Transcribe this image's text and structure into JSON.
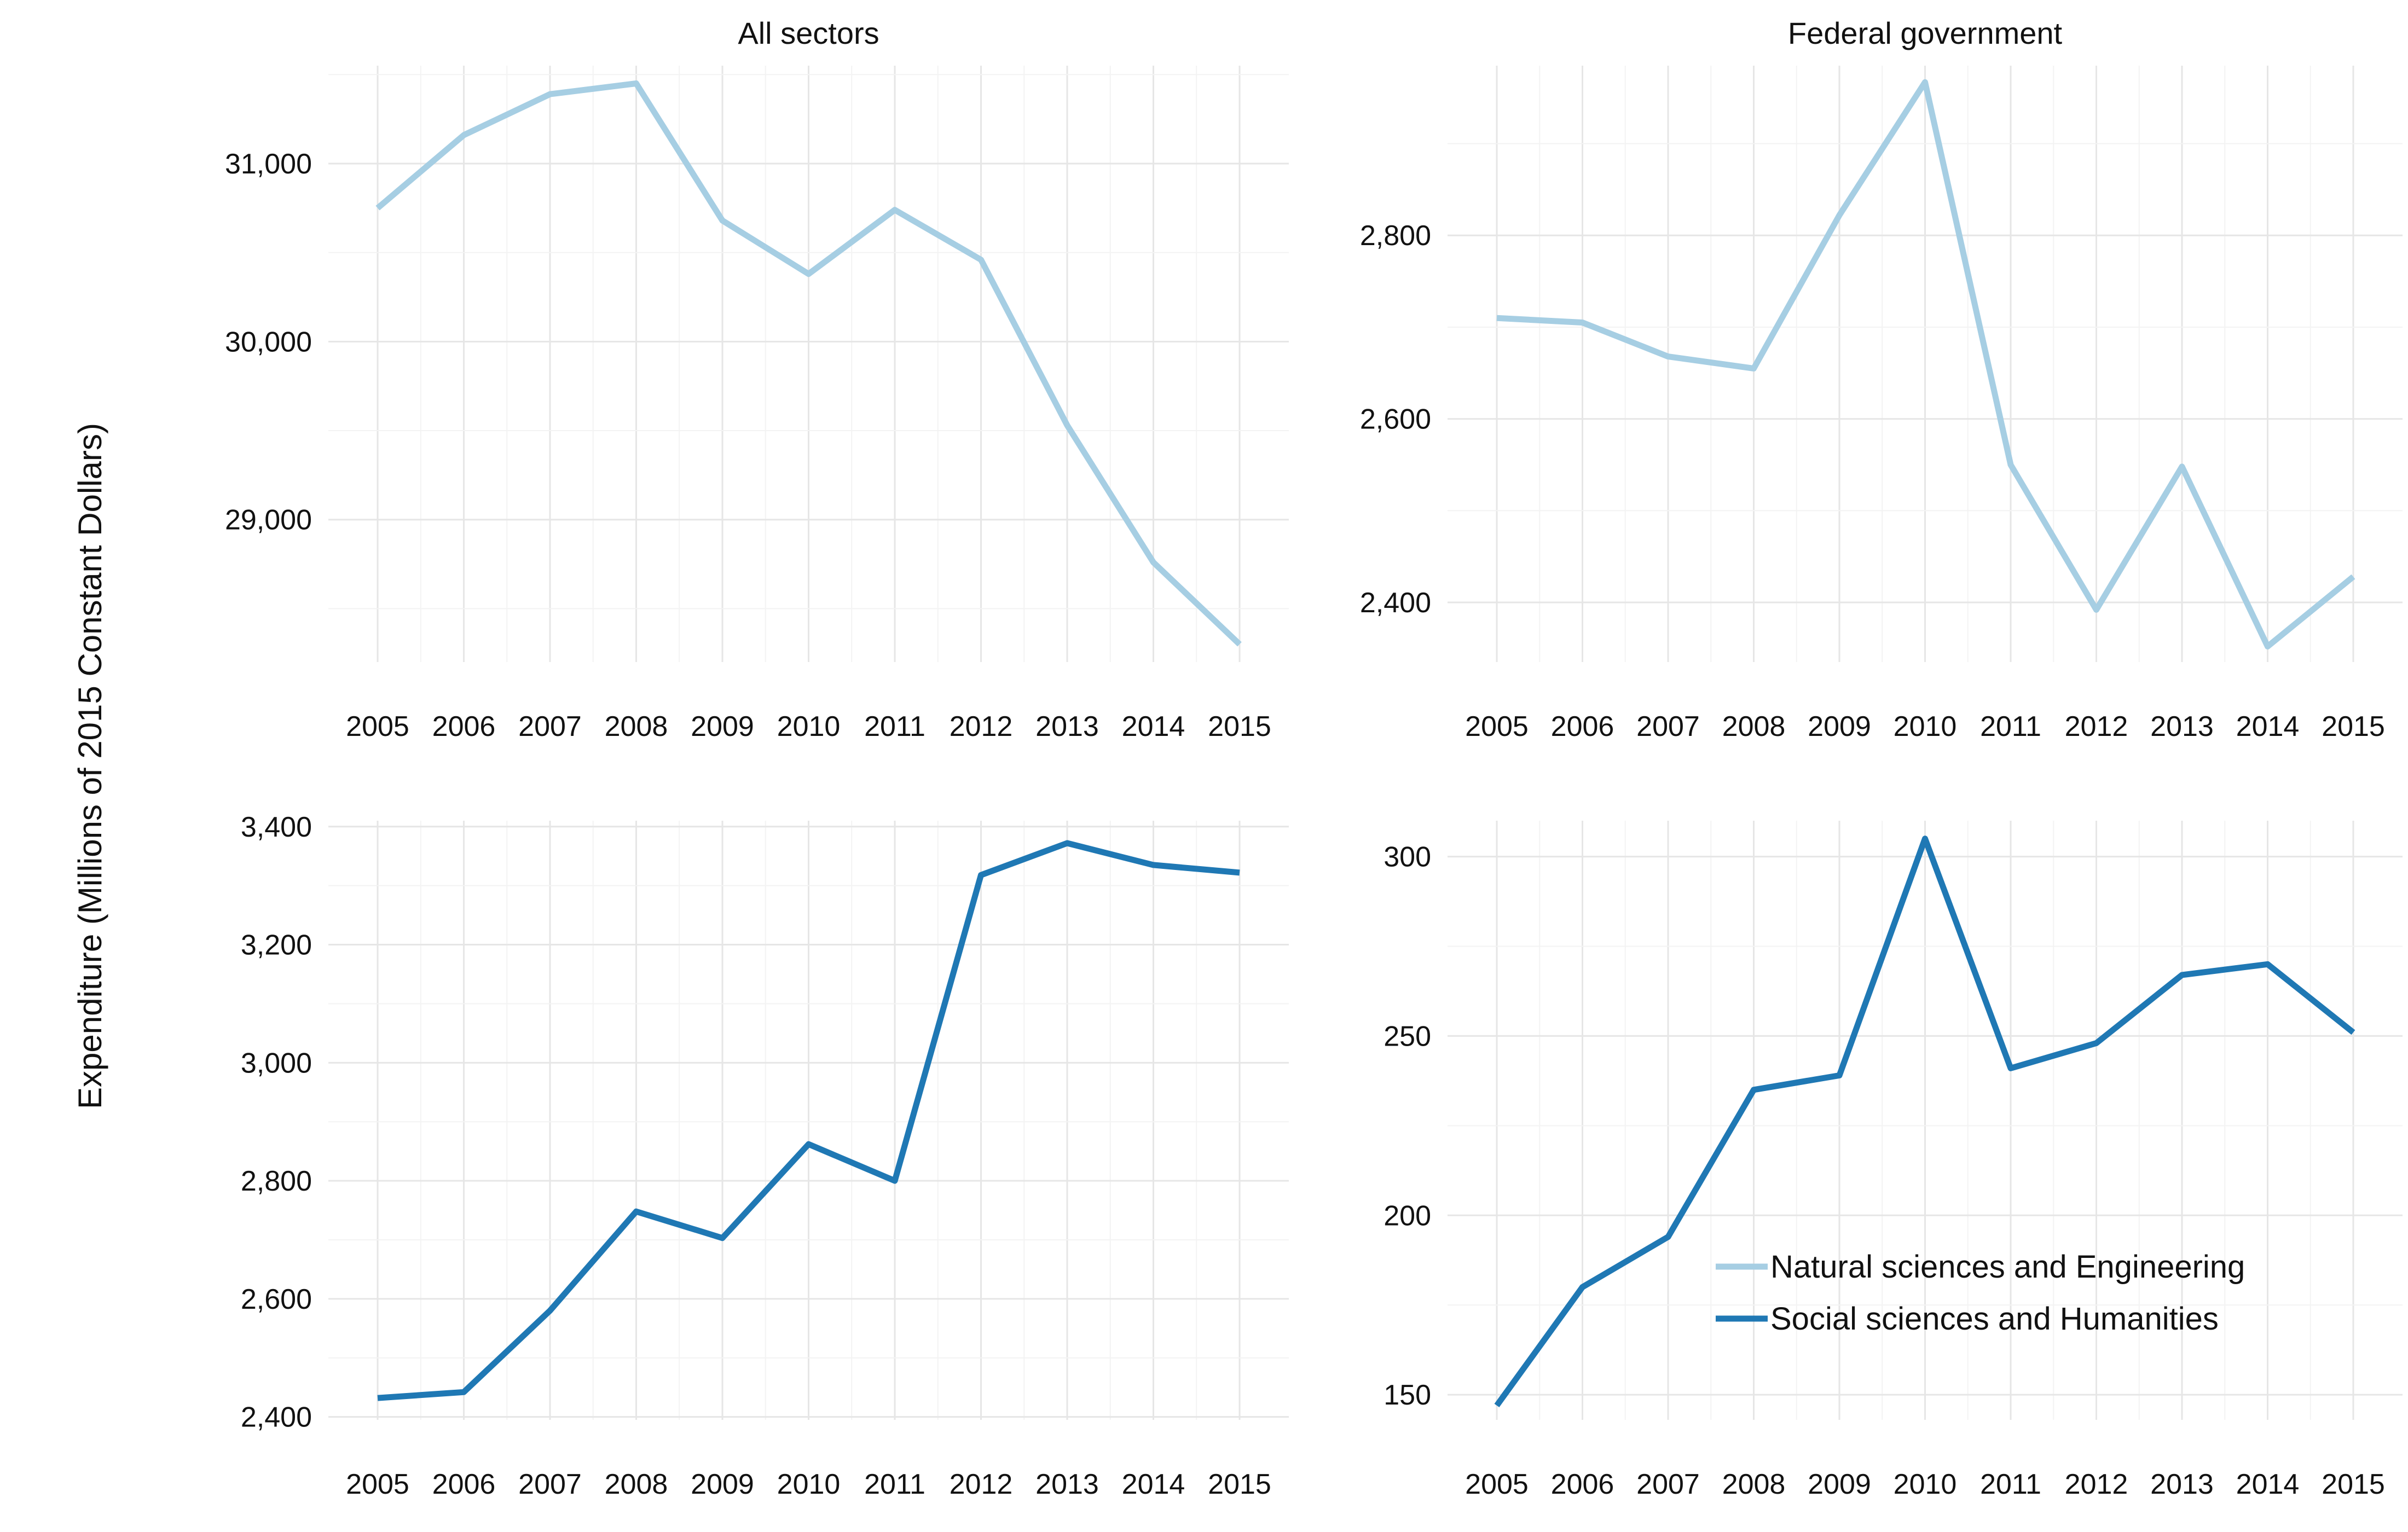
{
  "chart_data": {
    "type": "line",
    "ylabel": "Expenditure (Millions of 2015 Constant Dollars)",
    "colors": {
      "natural": "#a6cee3",
      "social": "#1f78b4"
    },
    "legend": {
      "placement": "bottom-right panel",
      "entries": [
        {
          "name": "Natural sciences and Engineering",
          "color": "#a6cee3"
        },
        {
          "name": "Social sciences and Humanities",
          "color": "#1f78b4"
        }
      ]
    },
    "x": [
      "2005",
      "2006",
      "2007",
      "2008",
      "2009",
      "2010",
      "2011",
      "2012",
      "2013",
      "2014",
      "2015"
    ],
    "panels": [
      {
        "facet": "All sectors",
        "series": [
          {
            "name": "Natural sciences and Engineering",
            "color": "#a6cee3",
            "values": [
              30750,
              31160,
              31390,
              31450,
              30680,
              30380,
              30740,
              30460,
              29530,
              28760,
              28300
            ]
          }
        ],
        "ylim": [
          28200,
          31550
        ],
        "yticks": [
          29000,
          30000,
          31000
        ],
        "ytick_labels": [
          "29,000",
          "30,000",
          "31,000"
        ]
      },
      {
        "facet": "Federal government",
        "series": [
          {
            "name": "Natural sciences and Engineering",
            "color": "#a6cee3",
            "values": [
              2710,
              2705,
              2668,
              2655,
              2822,
              2967,
              2550,
              2392,
              2548,
              2352,
              2428
            ]
          }
        ],
        "ylim": [
          2335,
          2985
        ],
        "yticks": [
          2400,
          2600,
          2800
        ],
        "ytick_labels": [
          "2,400",
          "2,600",
          "2,800"
        ]
      },
      {
        "facet": "",
        "series": [
          {
            "name": "Social sciences and Humanities",
            "color": "#1f78b4",
            "values": [
              2432,
              2442,
              2580,
              2748,
              2703,
              2862,
              2800,
              3318,
              3372,
              3335,
              3322
            ]
          }
        ],
        "ylim": [
          2395,
          3410
        ],
        "yticks": [
          2400,
          2600,
          2800,
          3000,
          3200,
          3400
        ],
        "ytick_labels": [
          "2,400",
          "2,600",
          "2,800",
          "3,000",
          "3,200",
          "3,400"
        ]
      },
      {
        "facet": "",
        "series": [
          {
            "name": "Social sciences and Humanities",
            "color": "#1f78b4",
            "values": [
              147,
              180,
              194,
              235,
              239,
              305,
              241,
              248,
              267,
              270,
              251
            ]
          }
        ],
        "ylim": [
          143,
          310
        ],
        "yticks": [
          150,
          200,
          250,
          300
        ],
        "ytick_labels": [
          "150",
          "200",
          "250",
          "300"
        ]
      }
    ]
  }
}
